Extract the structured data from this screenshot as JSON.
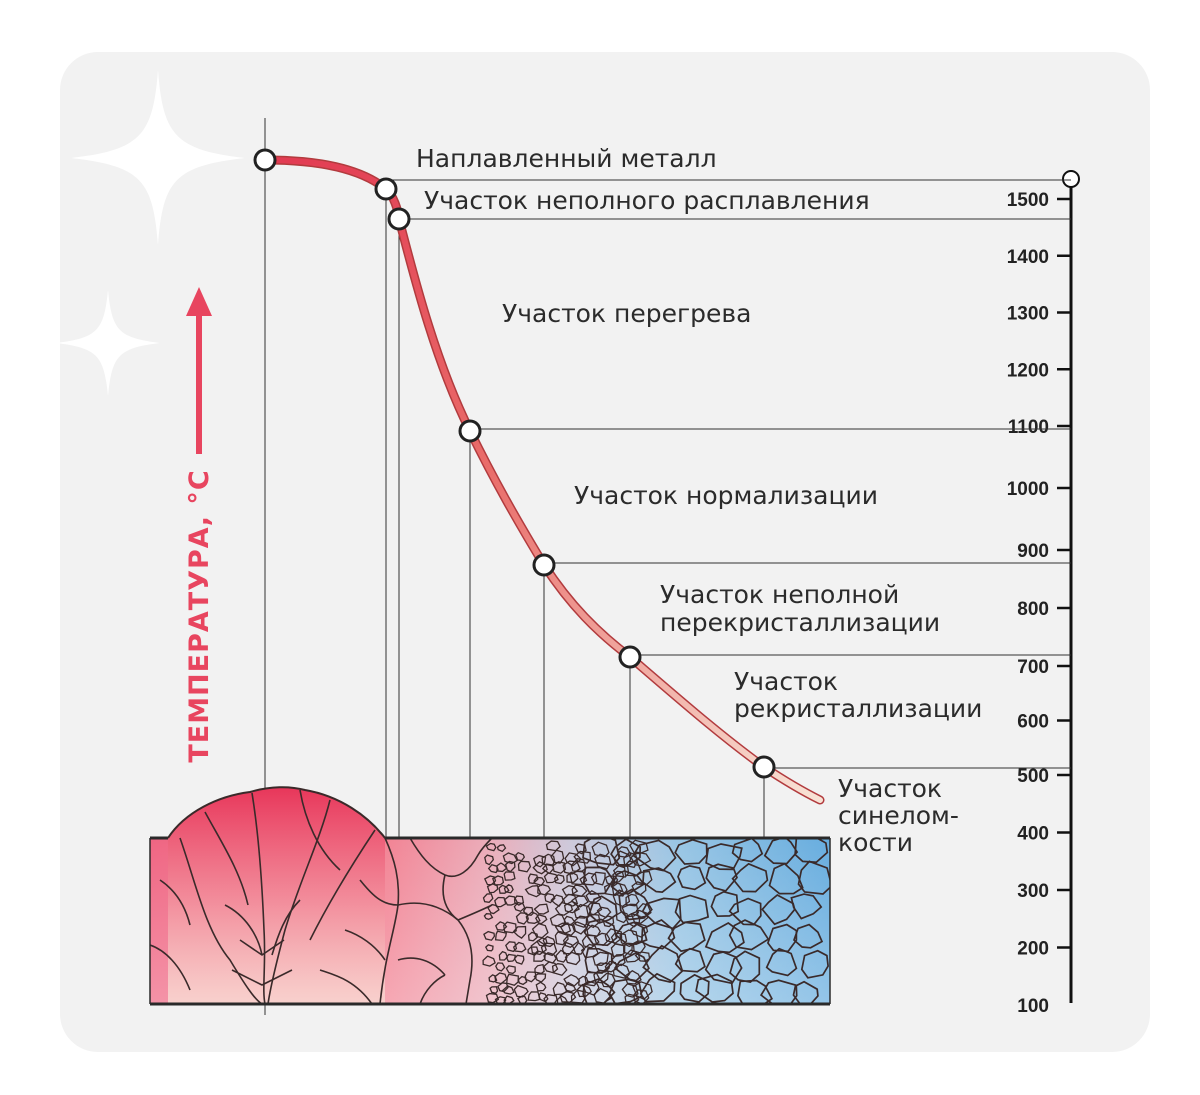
{
  "diagram": {
    "axis": {
      "title": "ТЕМПЕРАТУРА, °С",
      "ticks": [
        {
          "value": 1500,
          "label": "1500"
        },
        {
          "value": 1400,
          "label": "1400"
        },
        {
          "value": 1300,
          "label": "1300"
        },
        {
          "value": 1200,
          "label": "1200"
        },
        {
          "value": 1100,
          "label": "1100"
        },
        {
          "value": 1000,
          "label": "1000"
        },
        {
          "value": 900,
          "label": "900"
        },
        {
          "value": 800,
          "label": "800"
        },
        {
          "value": 700,
          "label": "700"
        },
        {
          "value": 600,
          "label": "600"
        },
        {
          "value": 500,
          "label": "500"
        },
        {
          "value": 400,
          "label": "400"
        },
        {
          "value": 300,
          "label": "300"
        },
        {
          "value": 200,
          "label": "200"
        },
        {
          "value": 100,
          "label": "100"
        }
      ]
    },
    "zones": [
      {
        "id": "deposited-metal",
        "lines": [
          "Наплавленный металл"
        ]
      },
      {
        "id": "partial-fusion",
        "lines": [
          "Участок неполного расплавления"
        ]
      },
      {
        "id": "overheating",
        "lines": [
          "Участок перегрева"
        ]
      },
      {
        "id": "normalization",
        "lines": [
          "Участок нормализации"
        ]
      },
      {
        "id": "partial-recrystallization",
        "lines": [
          "Участок неполной",
          "перекристаллизации"
        ]
      },
      {
        "id": "recrystallization",
        "lines": [
          "Участок",
          "рекристаллизации"
        ]
      },
      {
        "id": "blue-brittleness",
        "lines": [
          "Участок",
          "синелом-",
          "кости"
        ]
      }
    ],
    "colors": {
      "curve_hot": "#e8455f",
      "curve_cold": "#f6d9cc",
      "arrow": "#e8455f",
      "metal_hot": "#ea4a6e",
      "metal_cold": "#5aa7dc",
      "grain_line": "#3a2a2a"
    }
  }
}
